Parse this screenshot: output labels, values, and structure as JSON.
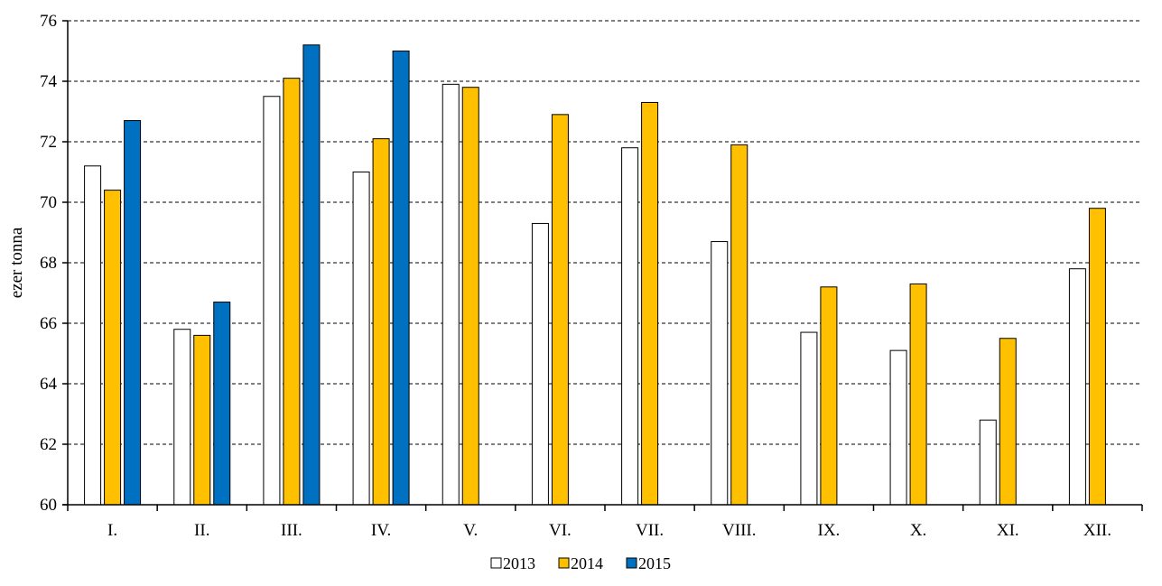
{
  "chart_data": {
    "type": "bar",
    "title": "",
    "xlabel": "",
    "ylabel": "ezer tonna",
    "ylim": [
      60,
      76
    ],
    "yticks": [
      60,
      62,
      64,
      66,
      68,
      70,
      72,
      74,
      76
    ],
    "grid": true,
    "legend_position": "bottom",
    "categories": [
      "I.",
      "II.",
      "III.",
      "IV.",
      "V.",
      "VI.",
      "VII.",
      "VIII.",
      "IX.",
      "X.",
      "XI.",
      "XII."
    ],
    "series": [
      {
        "name": "2013",
        "color": "#ffffff",
        "values": [
          71.2,
          65.8,
          73.5,
          71.0,
          73.9,
          69.3,
          71.8,
          68.7,
          65.7,
          65.1,
          62.8,
          67.8
        ]
      },
      {
        "name": "2014",
        "color": "#ffc000",
        "values": [
          70.4,
          65.6,
          74.1,
          72.1,
          73.8,
          72.9,
          73.3,
          71.9,
          67.2,
          67.3,
          65.5,
          69.8
        ]
      },
      {
        "name": "2015",
        "color": "#0070c0",
        "values": [
          72.7,
          66.7,
          75.2,
          75.0,
          null,
          null,
          null,
          null,
          null,
          null,
          null,
          null
        ]
      }
    ]
  }
}
